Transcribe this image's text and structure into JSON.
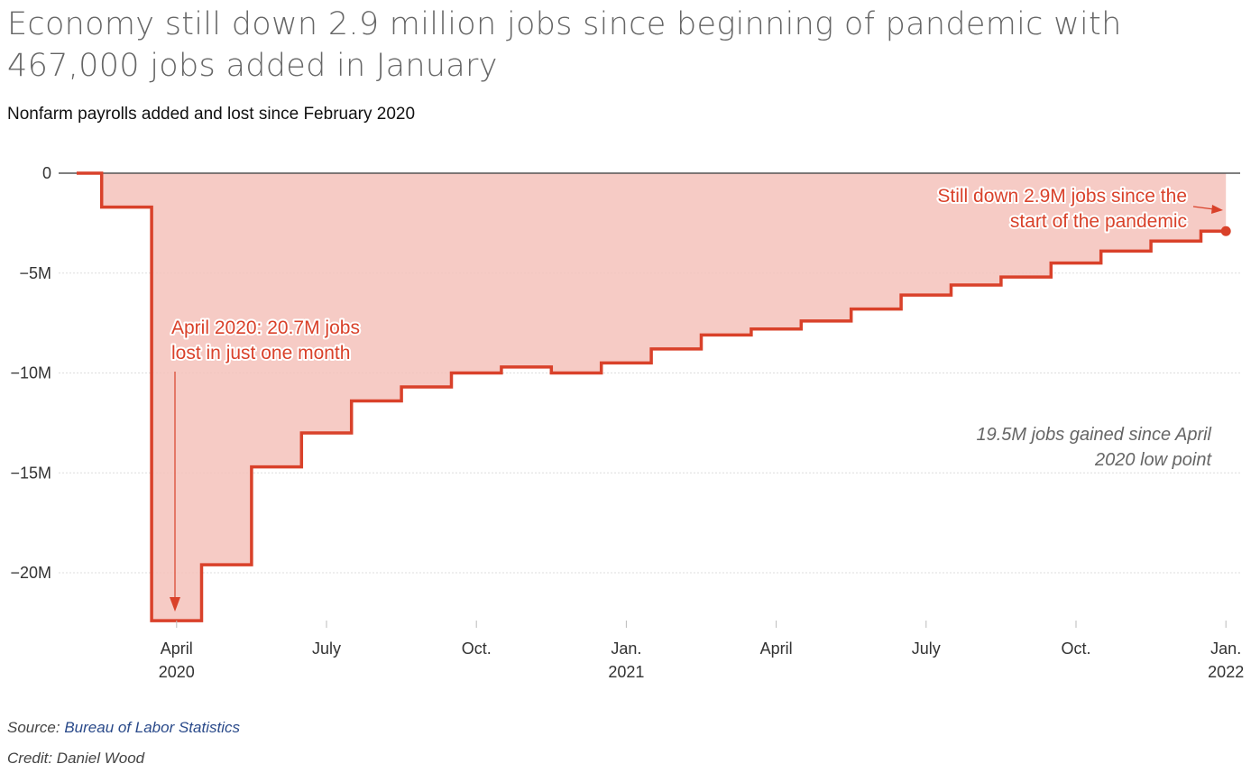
{
  "header": {
    "title": "Economy still down 2.9 million jobs since beginning of pandemic with 467,000 jobs added in January",
    "subtitle": "Nonfarm payrolls added and lost since February 2020"
  },
  "footer": {
    "source_label": "Source:",
    "source_name": "Bureau of Labor Statistics",
    "credit": "Credit: Daniel Wood"
  },
  "colors": {
    "line": "#d9412a",
    "fill": "#f4c2bb",
    "annotation": "#d9412a",
    "note": "#666666",
    "grid": "#dddddd",
    "zero_line": "#555555"
  },
  "chart_data": {
    "type": "area",
    "step": true,
    "title": "",
    "xlabel": "",
    "ylabel": "",
    "ylim": [
      -23,
      0
    ],
    "grid": true,
    "x": [
      "2020-02",
      "2020-03",
      "2020-04",
      "2020-05",
      "2020-06",
      "2020-07",
      "2020-08",
      "2020-09",
      "2020-10",
      "2020-11",
      "2020-12",
      "2021-01",
      "2021-02",
      "2021-03",
      "2021-04",
      "2021-05",
      "2021-06",
      "2021-07",
      "2021-08",
      "2021-09",
      "2021-10",
      "2021-11",
      "2021-12",
      "2022-01"
    ],
    "series": [
      {
        "values": [
          0,
          -1.7,
          -22.4,
          -19.6,
          -14.7,
          -13.0,
          -11.4,
          -10.7,
          -10.0,
          -9.7,
          -10.0,
          -9.5,
          -8.8,
          -8.1,
          -7.8,
          -7.4,
          -6.8,
          -6.1,
          -5.6,
          -5.2,
          -4.5,
          -3.9,
          -3.4,
          -2.9
        ]
      }
    ],
    "y_ticks": [
      {
        "value": 0,
        "label": "0"
      },
      {
        "value": -5,
        "label": "−5M"
      },
      {
        "value": -10,
        "label": "−10M"
      },
      {
        "value": -15,
        "label": "−15M"
      },
      {
        "value": -20,
        "label": "−20M"
      }
    ],
    "x_ticks": [
      {
        "date": "2020-04",
        "label": "April",
        "sub": "2020"
      },
      {
        "date": "2020-07",
        "label": "July",
        "sub": ""
      },
      {
        "date": "2020-10",
        "label": "Oct.",
        "sub": ""
      },
      {
        "date": "2021-01",
        "label": "Jan.",
        "sub": "2021"
      },
      {
        "date": "2021-04",
        "label": "April",
        "sub": ""
      },
      {
        "date": "2021-07",
        "label": "July",
        "sub": ""
      },
      {
        "date": "2021-10",
        "label": "Oct.",
        "sub": ""
      },
      {
        "date": "2022-01",
        "label": "Jan.",
        "sub": "2022"
      }
    ],
    "annotations": {
      "april_low": {
        "lines": [
          "April 2020: 20.7M jobs",
          "lost in just one month"
        ],
        "target_date": "2020-04",
        "target_value": -22.4
      },
      "still_down": {
        "lines": [
          "Still down 2.9M jobs since the",
          "start of the pandemic"
        ],
        "target_date": "2022-01",
        "target_value": -2.9
      },
      "gained_note": {
        "lines": [
          "19.5M jobs gained since April",
          "2020 low point"
        ]
      }
    }
  }
}
